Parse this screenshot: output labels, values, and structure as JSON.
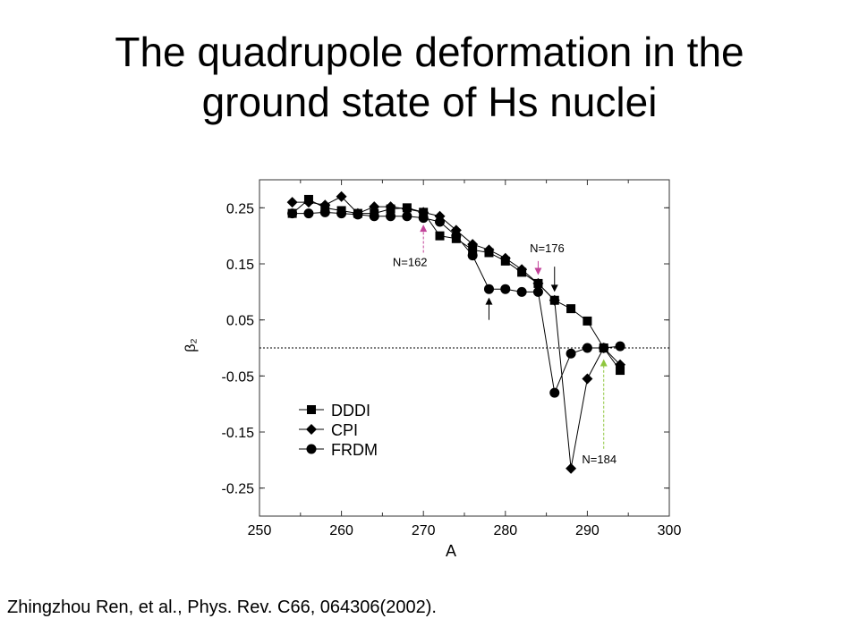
{
  "slide": {
    "title_line1": "The quadrupole deformation in the",
    "title_line2": "ground state of Hs nuclei",
    "citation": "Zhingzhou Ren, et al., Phys. Rev. C66, 064306(2002)."
  },
  "chart_data": {
    "type": "line",
    "title": "",
    "xlabel": "A",
    "ylabel": "β₂",
    "xlim": [
      250,
      300
    ],
    "ylim": [
      -0.3,
      0.3
    ],
    "xticks": [
      250,
      260,
      270,
      280,
      290,
      300
    ],
    "yticks": [
      0.25,
      0.15,
      0.05,
      -0.05,
      -0.15,
      -0.25
    ],
    "ytick_labels": [
      "0.25",
      "0.15",
      "0.05",
      "-0.05",
      "-0.15",
      "-0.25"
    ],
    "zero_line": true,
    "legend_position": "lower-left",
    "series": [
      {
        "name": "DDDI",
        "marker": "square",
        "x": [
          254,
          256,
          258,
          260,
          262,
          264,
          266,
          268,
          270,
          272,
          274,
          276,
          278,
          280,
          282,
          284,
          286,
          288,
          290,
          292,
          294
        ],
        "y": [
          0.24,
          0.265,
          0.25,
          0.245,
          0.24,
          0.24,
          0.248,
          0.25,
          0.242,
          0.2,
          0.195,
          0.175,
          0.17,
          0.155,
          0.135,
          0.115,
          0.085,
          0.07,
          0.048,
          0.0,
          -0.04
        ]
      },
      {
        "name": "CPI",
        "marker": "diamond",
        "x": [
          254,
          256,
          258,
          260,
          262,
          264,
          266,
          268,
          270,
          272,
          274,
          276,
          278,
          280,
          282,
          284,
          286,
          288,
          290,
          292,
          294
        ],
        "y": [
          0.26,
          0.26,
          0.255,
          0.27,
          0.24,
          0.252,
          0.252,
          0.248,
          0.242,
          0.235,
          0.21,
          0.185,
          0.175,
          0.16,
          0.14,
          0.115,
          0.085,
          -0.215,
          -0.055,
          0.0,
          -0.03
        ]
      },
      {
        "name": "FRDM",
        "marker": "circle",
        "x": [
          254,
          256,
          258,
          260,
          262,
          264,
          266,
          268,
          270,
          272,
          274,
          276,
          278,
          280,
          282,
          284,
          286,
          288,
          290,
          292,
          294
        ],
        "y": [
          0.24,
          0.24,
          0.242,
          0.24,
          0.238,
          0.235,
          0.235,
          0.235,
          0.232,
          0.225,
          0.2,
          0.165,
          0.105,
          0.105,
          0.1,
          0.1,
          -0.08,
          -0.01,
          0.0,
          0.0,
          0.003
        ]
      }
    ],
    "annotations": [
      {
        "label": "N=162",
        "x": 270,
        "y": 0.22,
        "y_from": 0.17,
        "arrow": "dashed",
        "color": "#c2449a"
      },
      {
        "label": "N=176",
        "x": 284,
        "y": 0.13,
        "y_from": 0.155,
        "arrow": "solid",
        "color": "#c2449a"
      },
      {
        "label": "",
        "x": 286,
        "y": 0.1,
        "y_from": 0.145,
        "arrow": "solid",
        "color": "#000000"
      },
      {
        "label": "",
        "x": 278,
        "y": 0.09,
        "y_from": 0.05,
        "arrow": "solid",
        "color": "#000000"
      },
      {
        "label": "N=184",
        "x": 292,
        "y": -0.02,
        "y_from": -0.18,
        "arrow": "dashed",
        "color": "#8fc63f"
      }
    ]
  }
}
